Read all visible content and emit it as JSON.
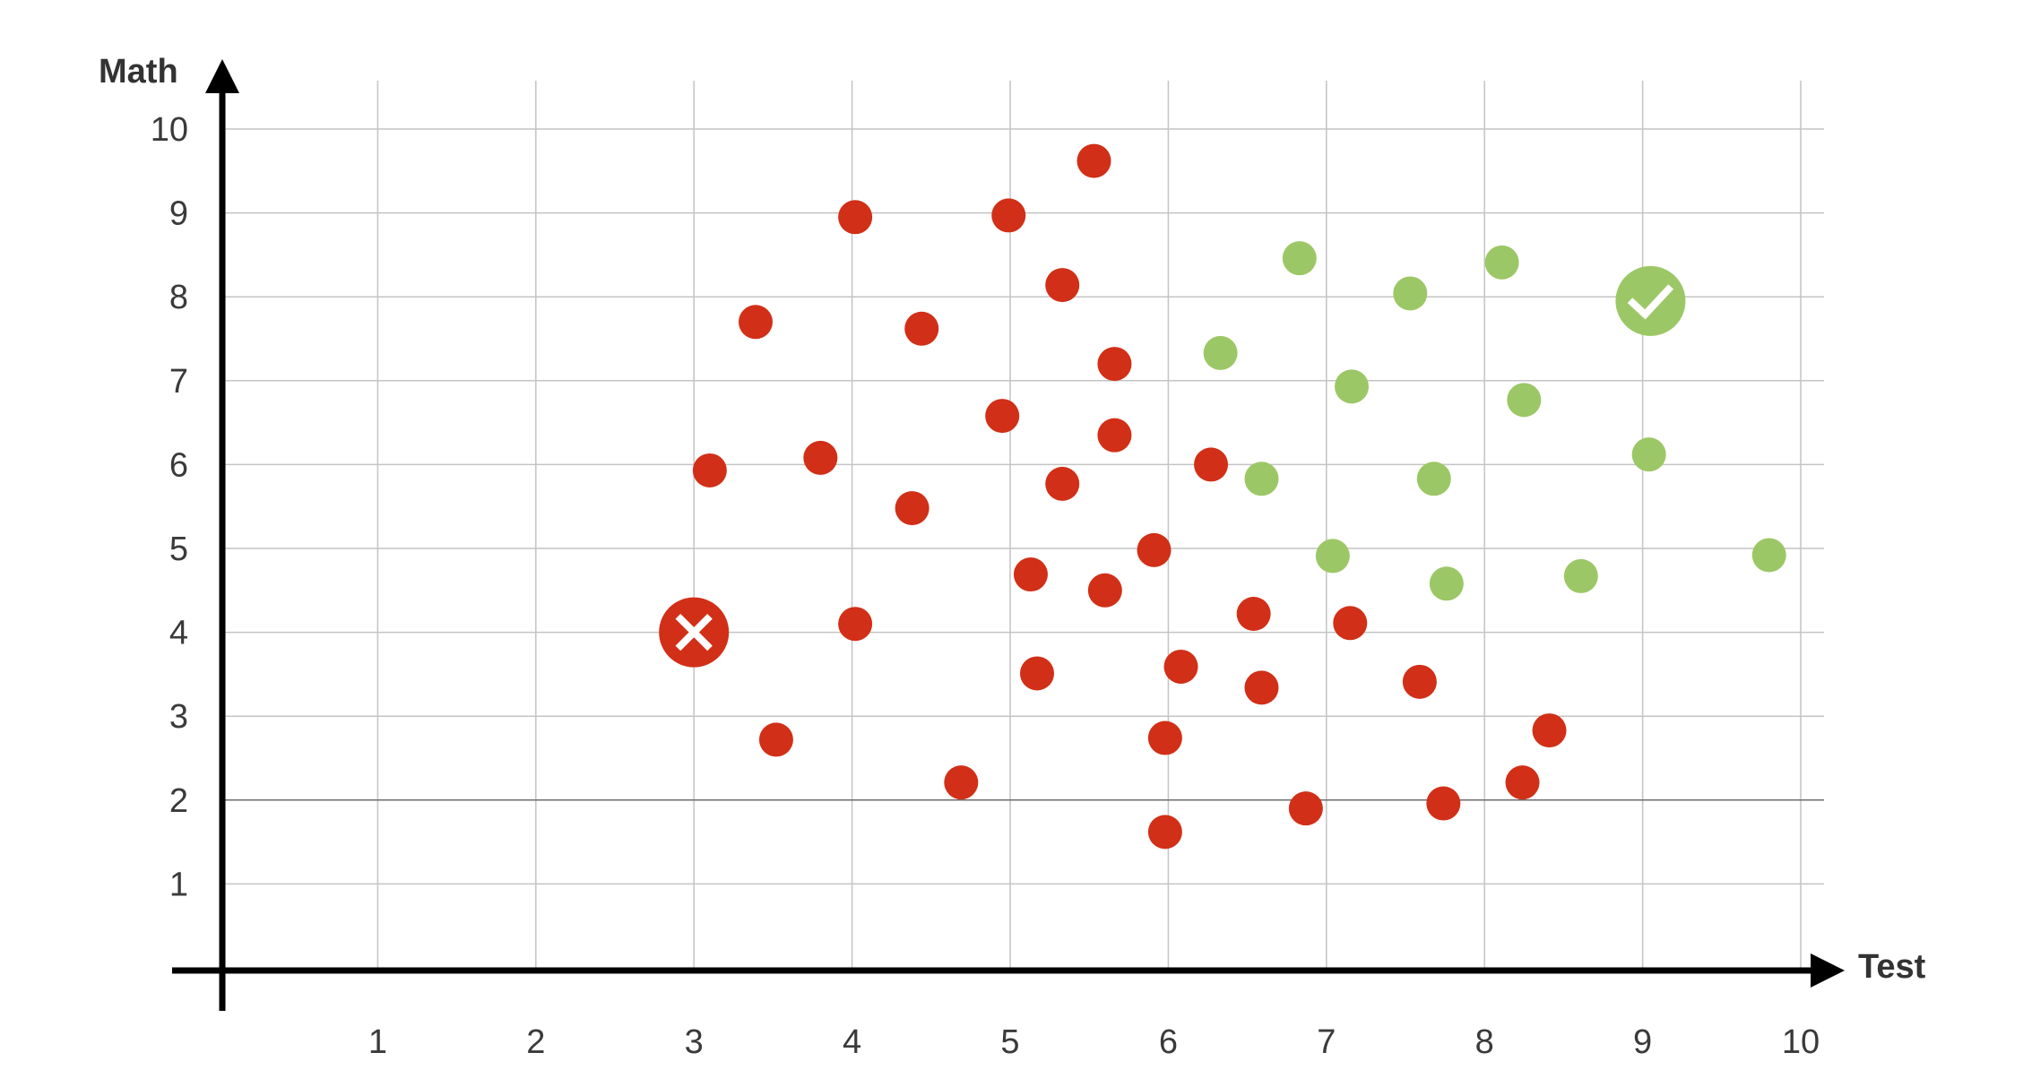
{
  "chart_data": {
    "type": "scatter",
    "xlabel": "Test",
    "ylabel": "Math",
    "xlim": [
      0,
      10
    ],
    "ylim": [
      0,
      10
    ],
    "x_ticks": [
      "1",
      "2",
      "3",
      "4",
      "5",
      "6",
      "7",
      "8",
      "9",
      "10"
    ],
    "y_ticks": [
      "1",
      "2",
      "3",
      "4",
      "5",
      "6",
      "7",
      "8",
      "9",
      "10"
    ],
    "grid": true,
    "legend": "none",
    "colors": {
      "red": "#d12f17",
      "green": "#9cc766",
      "axis": "#000000",
      "grid": "#c4c4c4"
    },
    "series": [
      {
        "color": "red",
        "points": [
          [
            5.53,
            9.62
          ],
          [
            4.02,
            8.95
          ],
          [
            4.99,
            8.97
          ],
          [
            5.33,
            8.14
          ],
          [
            3.39,
            7.7
          ],
          [
            4.44,
            7.62
          ],
          [
            5.66,
            7.2
          ],
          [
            4.95,
            6.58
          ],
          [
            5.66,
            6.35
          ],
          [
            3.1,
            5.93
          ],
          [
            3.8,
            6.08
          ],
          [
            6.27,
            6.0
          ],
          [
            5.33,
            5.77
          ],
          [
            4.38,
            5.48
          ],
          [
            5.91,
            4.98
          ],
          [
            5.13,
            4.69
          ],
          [
            5.6,
            4.5
          ],
          [
            6.54,
            4.22
          ],
          [
            4.02,
            4.1
          ],
          [
            7.15,
            4.11
          ],
          [
            6.08,
            3.59
          ],
          [
            5.17,
            3.51
          ],
          [
            6.59,
            3.34
          ],
          [
            7.59,
            3.41
          ],
          [
            3.52,
            2.72
          ],
          [
            5.98,
            2.74
          ],
          [
            8.41,
            2.83
          ],
          [
            4.69,
            2.21
          ],
          [
            8.24,
            2.21
          ],
          [
            6.87,
            1.9
          ],
          [
            7.74,
            1.96
          ],
          [
            5.98,
            1.62
          ]
        ]
      },
      {
        "color": "green",
        "points": [
          [
            6.83,
            8.46
          ],
          [
            8.11,
            8.41
          ],
          [
            7.53,
            8.04
          ],
          [
            6.33,
            7.33
          ],
          [
            7.16,
            6.93
          ],
          [
            8.25,
            6.77
          ],
          [
            9.04,
            6.12
          ],
          [
            6.59,
            5.83
          ],
          [
            7.68,
            5.83
          ],
          [
            7.04,
            4.91
          ],
          [
            7.76,
            4.58
          ],
          [
            8.61,
            4.67
          ],
          [
            9.8,
            4.92
          ]
        ]
      }
    ],
    "annotations": [
      {
        "x": 3.0,
        "y": 4.0,
        "color": "red",
        "icon": "cross-icon"
      },
      {
        "x": 9.05,
        "y": 7.95,
        "color": "green",
        "icon": "check-icon"
      }
    ]
  }
}
